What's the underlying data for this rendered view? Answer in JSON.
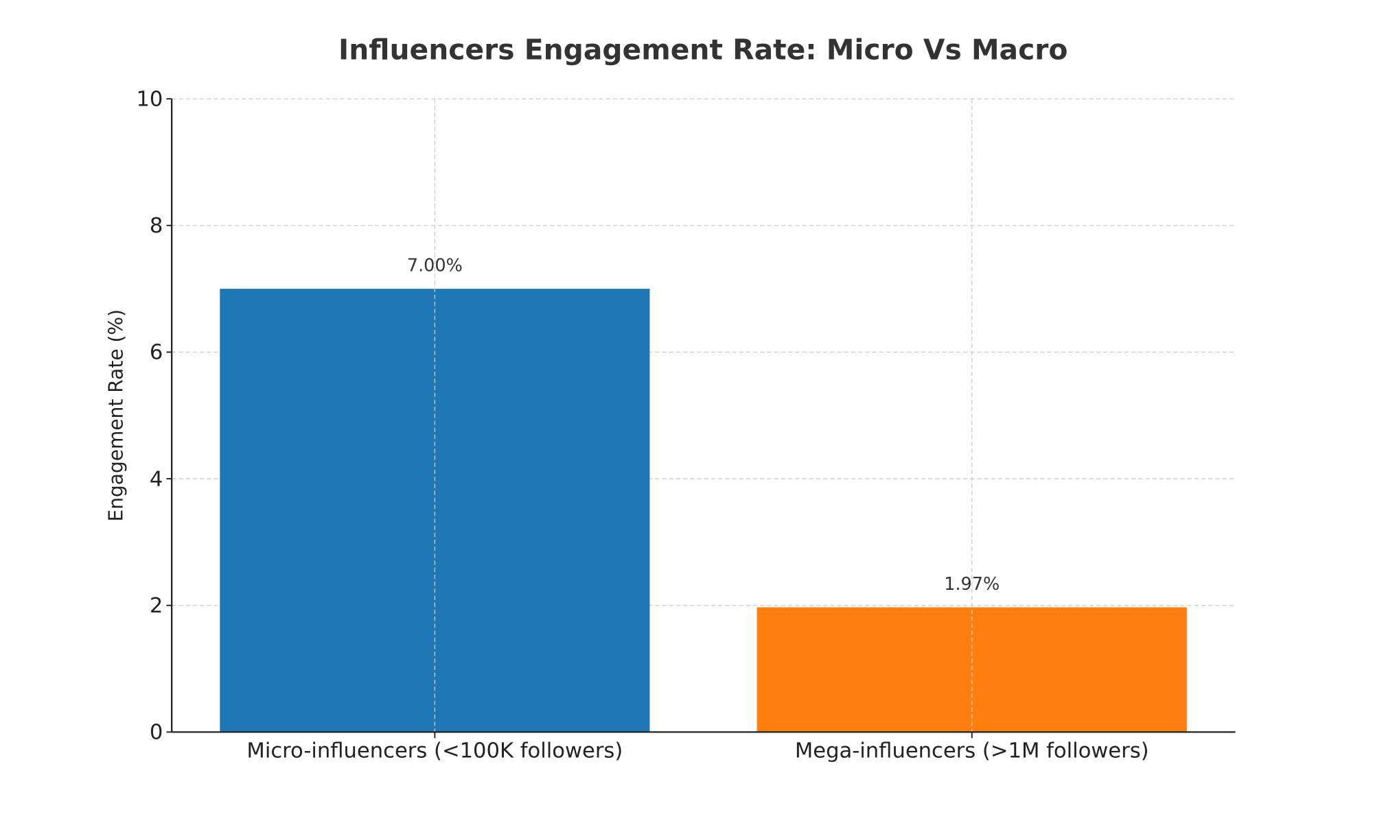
{
  "chart_data": {
    "type": "bar",
    "title": "Influencers Engagement Rate: Micro Vs Macro",
    "xlabel": "",
    "ylabel": "Engagement Rate (%)",
    "categories": [
      "Micro-influencers (<100K followers)",
      "Mega-influencers (>1M followers)"
    ],
    "values": [
      7.0,
      1.97
    ],
    "data_labels": [
      "7.00%",
      "1.97%"
    ],
    "colors": [
      "#1f77b4",
      "#ff7f0e"
    ],
    "ylim": [
      0,
      10
    ],
    "yticks": [
      "0",
      "2",
      "4",
      "6",
      "8",
      "10"
    ],
    "grid": true,
    "legend": "none"
  }
}
